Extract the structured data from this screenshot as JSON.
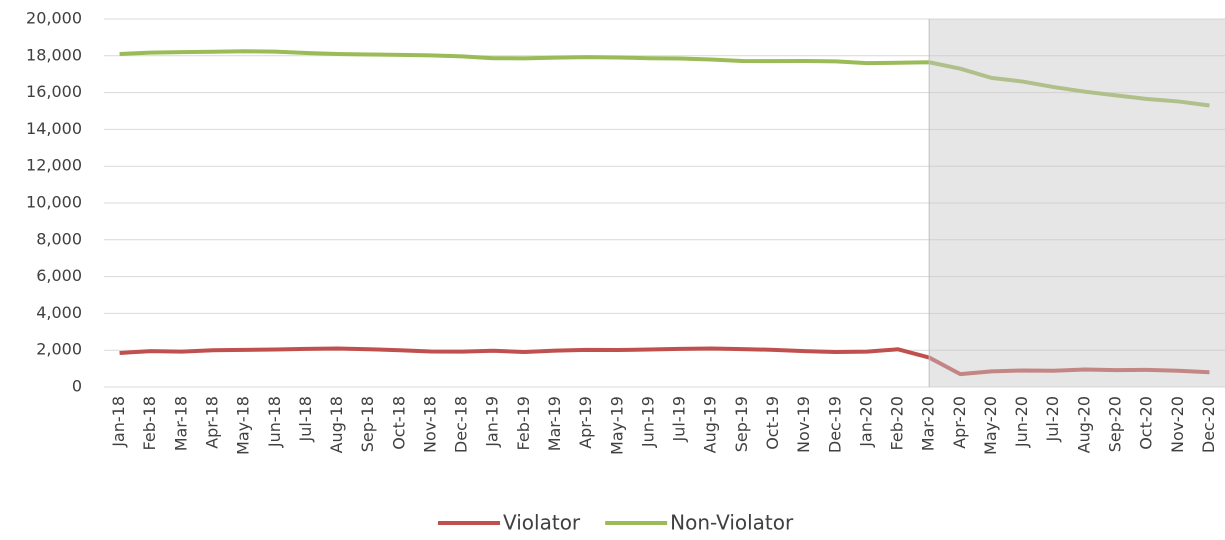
{
  "chart_data": {
    "type": "line",
    "categories": [
      "Jan-18",
      "Feb-18",
      "Mar-18",
      "Apr-18",
      "May-18",
      "Jun-18",
      "Jul-18",
      "Aug-18",
      "Sep-18",
      "Oct-18",
      "Nov-18",
      "Dec-18",
      "Jan-19",
      "Feb-19",
      "Mar-19",
      "Apr-19",
      "May-19",
      "Jun-19",
      "Jul-19",
      "Aug-19",
      "Sep-19",
      "Oct-19",
      "Nov-19",
      "Dec-19",
      "Jan-20",
      "Feb-20",
      "Mar-20",
      "Apr-20",
      "May-20",
      "Jun-20",
      "Jul-20",
      "Aug-20",
      "Sep-20",
      "Oct-20",
      "Nov-20",
      "Dec-20"
    ],
    "series": [
      {
        "name": "Violator",
        "color": "#c0504d",
        "values": [
          1850,
          1950,
          1920,
          2000,
          2020,
          2040,
          2070,
          2090,
          2050,
          2000,
          1930,
          1920,
          1970,
          1900,
          1980,
          2020,
          2010,
          2040,
          2070,
          2090,
          2060,
          2020,
          1950,
          1900,
          1920,
          2050,
          1600,
          700,
          850,
          900,
          880,
          950,
          920,
          930,
          880,
          800
        ]
      },
      {
        "name": "Non-Violator",
        "color": "#9bbb59",
        "values": [
          18100,
          18170,
          18200,
          18220,
          18250,
          18230,
          18150,
          18100,
          18070,
          18050,
          18020,
          17970,
          17870,
          17860,
          17900,
          17930,
          17910,
          17870,
          17850,
          17800,
          17720,
          17710,
          17720,
          17700,
          17600,
          17620,
          17650,
          17300,
          16800,
          16600,
          16300,
          16050,
          15850,
          15650,
          15520,
          15300
        ]
      }
    ],
    "ylim": [
      0,
      20000
    ],
    "yticks": [
      {
        "value": 0,
        "label": "0"
      },
      {
        "value": 2000,
        "label": "2,000"
      },
      {
        "value": 4000,
        "label": "4,000"
      },
      {
        "value": 6000,
        "label": "6,000"
      },
      {
        "value": 8000,
        "label": "8,000"
      },
      {
        "value": 10000,
        "label": "10,000"
      },
      {
        "value": 12000,
        "label": "12,000"
      },
      {
        "value": 14000,
        "label": "14,000"
      },
      {
        "value": 16000,
        "label": "16,000"
      },
      {
        "value": 18000,
        "label": "18,000"
      },
      {
        "value": 20000,
        "label": "20,000"
      }
    ],
    "grid": true,
    "legend": "bottom",
    "highlight": {
      "from": "Mar-20",
      "to": "Dec-20",
      "color": "rgba(200,200,200,0.45)"
    }
  }
}
